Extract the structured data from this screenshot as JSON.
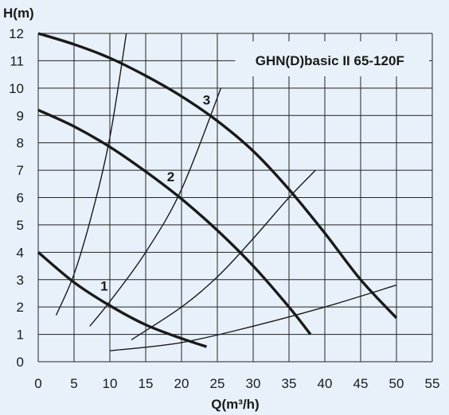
{
  "chart_data": {
    "type": "line",
    "title": "GHN(D)basic II 65-120F",
    "xlabel": "Q(m³/h)",
    "ylabel": "H(m)",
    "xlim": [
      0,
      55
    ],
    "ylim": [
      0,
      12
    ],
    "x_ticks": [
      0,
      5,
      10,
      15,
      20,
      25,
      30,
      35,
      40,
      45,
      50,
      55
    ],
    "y_ticks": [
      0,
      1,
      2,
      3,
      4,
      5,
      6,
      7,
      8,
      9,
      10,
      11,
      12
    ],
    "grid": true,
    "background_color": "#e8f1fa",
    "line_color": "#1a1a1a",
    "pump_curves": [
      {
        "name": "1",
        "points": [
          [
            0,
            4.0
          ],
          [
            5,
            2.9
          ],
          [
            10,
            2.05
          ],
          [
            15,
            1.35
          ],
          [
            20,
            0.85
          ],
          [
            23.5,
            0.55
          ]
        ]
      },
      {
        "name": "2",
        "points": [
          [
            0,
            9.2
          ],
          [
            5,
            8.6
          ],
          [
            10,
            7.85
          ],
          [
            15,
            6.95
          ],
          [
            20,
            5.95
          ],
          [
            25,
            4.8
          ],
          [
            30,
            3.5
          ],
          [
            35,
            2.0
          ],
          [
            38,
            1.0
          ]
        ]
      },
      {
        "name": "3",
        "points": [
          [
            0,
            12.0
          ],
          [
            5,
            11.6
          ],
          [
            10,
            11.1
          ],
          [
            15,
            10.45
          ],
          [
            20,
            9.7
          ],
          [
            25,
            8.8
          ],
          [
            30,
            7.7
          ],
          [
            35,
            6.3
          ],
          [
            40,
            4.7
          ],
          [
            45,
            3.0
          ],
          [
            50,
            1.6
          ]
        ]
      }
    ],
    "system_curves": [
      {
        "points": [
          [
            2.5,
            1.7
          ],
          [
            5,
            3.2
          ],
          [
            7.5,
            5.4
          ],
          [
            10,
            8.2
          ],
          [
            12.3,
            12.0
          ]
        ]
      },
      {
        "points": [
          [
            7.2,
            1.3
          ],
          [
            10,
            2.2
          ],
          [
            15,
            4.0
          ],
          [
            20,
            6.3
          ],
          [
            25.5,
            10.0
          ]
        ]
      },
      {
        "points": [
          [
            13,
            0.8
          ],
          [
            20,
            2.0
          ],
          [
            25,
            3.1
          ],
          [
            30,
            4.5
          ],
          [
            35,
            6.0
          ],
          [
            38.7,
            7.0
          ]
        ]
      },
      {
        "points": [
          [
            10,
            0.4
          ],
          [
            20,
            0.7
          ],
          [
            30,
            1.3
          ],
          [
            40,
            2.0
          ],
          [
            50,
            2.8
          ]
        ]
      }
    ],
    "curve_labels": [
      {
        "text": "1",
        "x": 9.2,
        "y": 2.6
      },
      {
        "text": "2",
        "x": 18.5,
        "y": 6.6
      },
      {
        "text": "3",
        "x": 23.5,
        "y": 9.4
      }
    ]
  }
}
